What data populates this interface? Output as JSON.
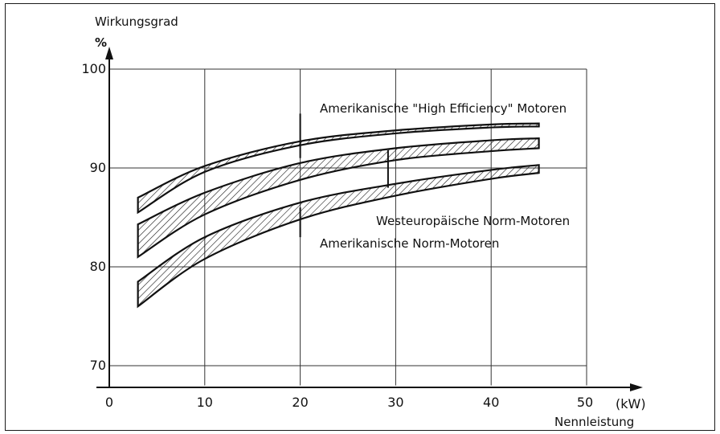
{
  "chart_data": {
    "type": "area",
    "title": "",
    "ylabel": "Wirkungsgrad",
    "yunit": "%",
    "xlabel": "Nennleistung",
    "xunit": "(kW)",
    "xlim": [
      0,
      50
    ],
    "ylim": [
      68,
      100
    ],
    "xticks": [
      0,
      10,
      20,
      30,
      40,
      50
    ],
    "xtick_labels": [
      "0",
      "10",
      "20",
      "30",
      "40",
      "50"
    ],
    "yticks": [
      70,
      80,
      90,
      100
    ],
    "ytick_labels": [
      "70",
      "80",
      "90",
      "100"
    ],
    "grid": true,
    "bands": [
      {
        "name": "Amerikanische \"High Efficiency\" Motoren",
        "x": [
          3,
          10,
          20,
          30,
          40,
          45
        ],
        "upper": [
          87,
          90.2,
          92.7,
          93.8,
          94.4,
          94.5
        ],
        "lower": [
          85.5,
          89.6,
          92.3,
          93.5,
          94.1,
          94.2
        ]
      },
      {
        "name": "Westeuropäische Norm-Motoren",
        "x": [
          3,
          10,
          20,
          30,
          40,
          45
        ],
        "upper": [
          84.3,
          87.5,
          90.5,
          92,
          92.8,
          93
        ],
        "lower": [
          81,
          85.3,
          88.8,
          90.8,
          91.7,
          92
        ]
      },
      {
        "name": "Amerikanische Norm-Motoren",
        "x": [
          3,
          10,
          20,
          30,
          40,
          45
        ],
        "upper": [
          78.5,
          83,
          86.5,
          88.4,
          89.8,
          90.3
        ],
        "lower": [
          76,
          80.8,
          84.8,
          87.2,
          88.9,
          89.5
        ]
      }
    ],
    "markers": [
      {
        "x": 20,
        "y_from": 91,
        "y_to": 95.5
      },
      {
        "x": 29.2,
        "y_from": 88,
        "y_to": 91.8
      },
      {
        "x": 20,
        "y_from": 83,
        "y_to": 86
      }
    ]
  }
}
